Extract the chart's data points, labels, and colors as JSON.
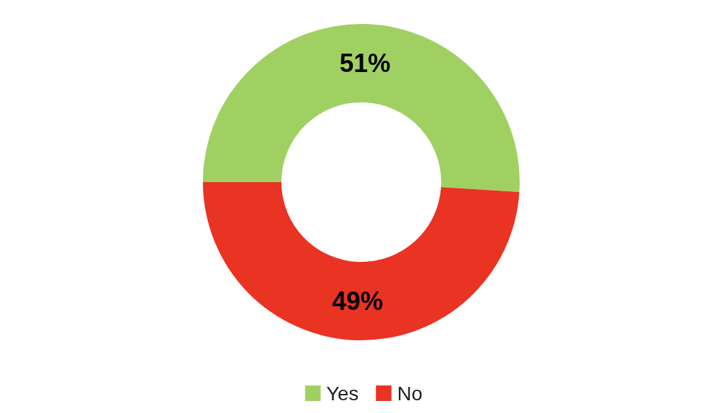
{
  "chart_data": {
    "type": "donut",
    "categories": [
      "Yes",
      "No"
    ],
    "values": [
      51,
      49
    ],
    "colors": [
      "#a0d062",
      "#e93323"
    ],
    "value_labels": [
      "51%",
      "49%"
    ],
    "legend": "bottom"
  }
}
